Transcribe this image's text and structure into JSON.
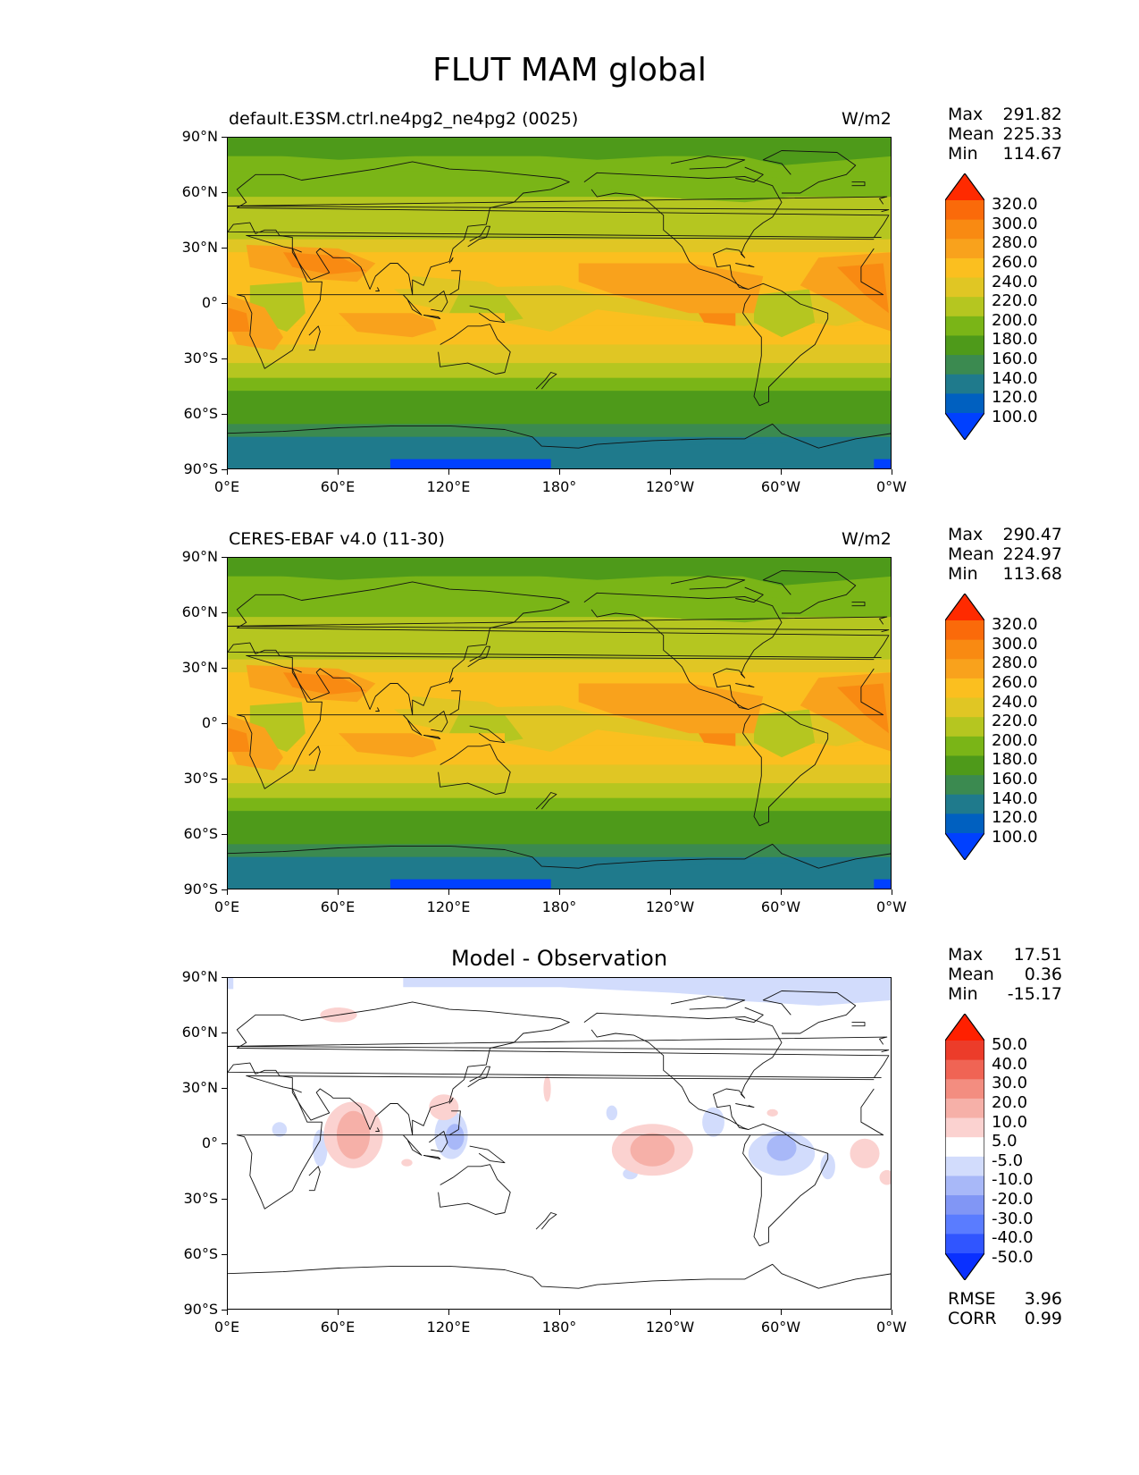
{
  "figure_title": "FLUT MAM global",
  "panels": [
    {
      "title": "default.E3SM.ctrl.ne4pg2_ne4pg2 (0025)",
      "units": "W/m2",
      "stats": {
        "max_label": "Max",
        "max": "291.82",
        "mean_label": "Mean",
        "mean": "225.33",
        "min_label": "Min",
        "min": "114.67"
      },
      "colorbar_levels": [
        "320.0",
        "300.0",
        "280.0",
        "260.0",
        "240.0",
        "220.0",
        "200.0",
        "180.0",
        "160.0",
        "140.0",
        "120.0",
        "100.0"
      ]
    },
    {
      "title": "CERES-EBAF v4.0 (11-30)",
      "units": "W/m2",
      "stats": {
        "max_label": "Max",
        "max": "290.47",
        "mean_label": "Mean",
        "mean": "224.97",
        "min_label": "Min",
        "min": "113.68"
      },
      "colorbar_levels": [
        "320.0",
        "300.0",
        "280.0",
        "260.0",
        "240.0",
        "220.0",
        "200.0",
        "180.0",
        "160.0",
        "140.0",
        "120.0",
        "100.0"
      ]
    },
    {
      "title": "Model - Observation",
      "units": "",
      "stats": {
        "max_label": "Max",
        "max": "17.51",
        "mean_label": "Mean",
        "mean": "0.36",
        "min_label": "Min",
        "min": "-15.17"
      },
      "colorbar_levels": [
        "50.0",
        "40.0",
        "30.0",
        "20.0",
        "10.0",
        "5.0",
        "-5.0",
        "-10.0",
        "-20.0",
        "-30.0",
        "-40.0",
        "-50.0"
      ],
      "metrics": {
        "rmse_label": "RMSE",
        "rmse": "3.96",
        "corr_label": "CORR",
        "corr": "0.99"
      }
    }
  ],
  "lat_ticks": [
    "90°N",
    "60°N",
    "30°N",
    "0°",
    "30°S",
    "60°S",
    "90°S"
  ],
  "lon_ticks": [
    "0°E",
    "60°E",
    "120°E",
    "180°",
    "120°W",
    "60°W",
    "0°W"
  ],
  "colors": {
    "abs_cmap": [
      "#0040ff",
      "#0060c0",
      "#1f7a8c",
      "#3b8a50",
      "#4e9a1a",
      "#7ab517",
      "#b5c620",
      "#e0c624",
      "#fbbf1f",
      "#f9a21c",
      "#f98a12",
      "#fa6a0a",
      "#ff2a00"
    ],
    "diff_cmap": [
      "#0a30ff",
      "#3055ff",
      "#5a7cff",
      "#8196f5",
      "#a8b8f8",
      "#d2dcfc",
      "#ffffff",
      "#fbd2d0",
      "#f6b0a8",
      "#f38d80",
      "#f06454",
      "#ec3c2a",
      "#ff2000"
    ]
  }
}
